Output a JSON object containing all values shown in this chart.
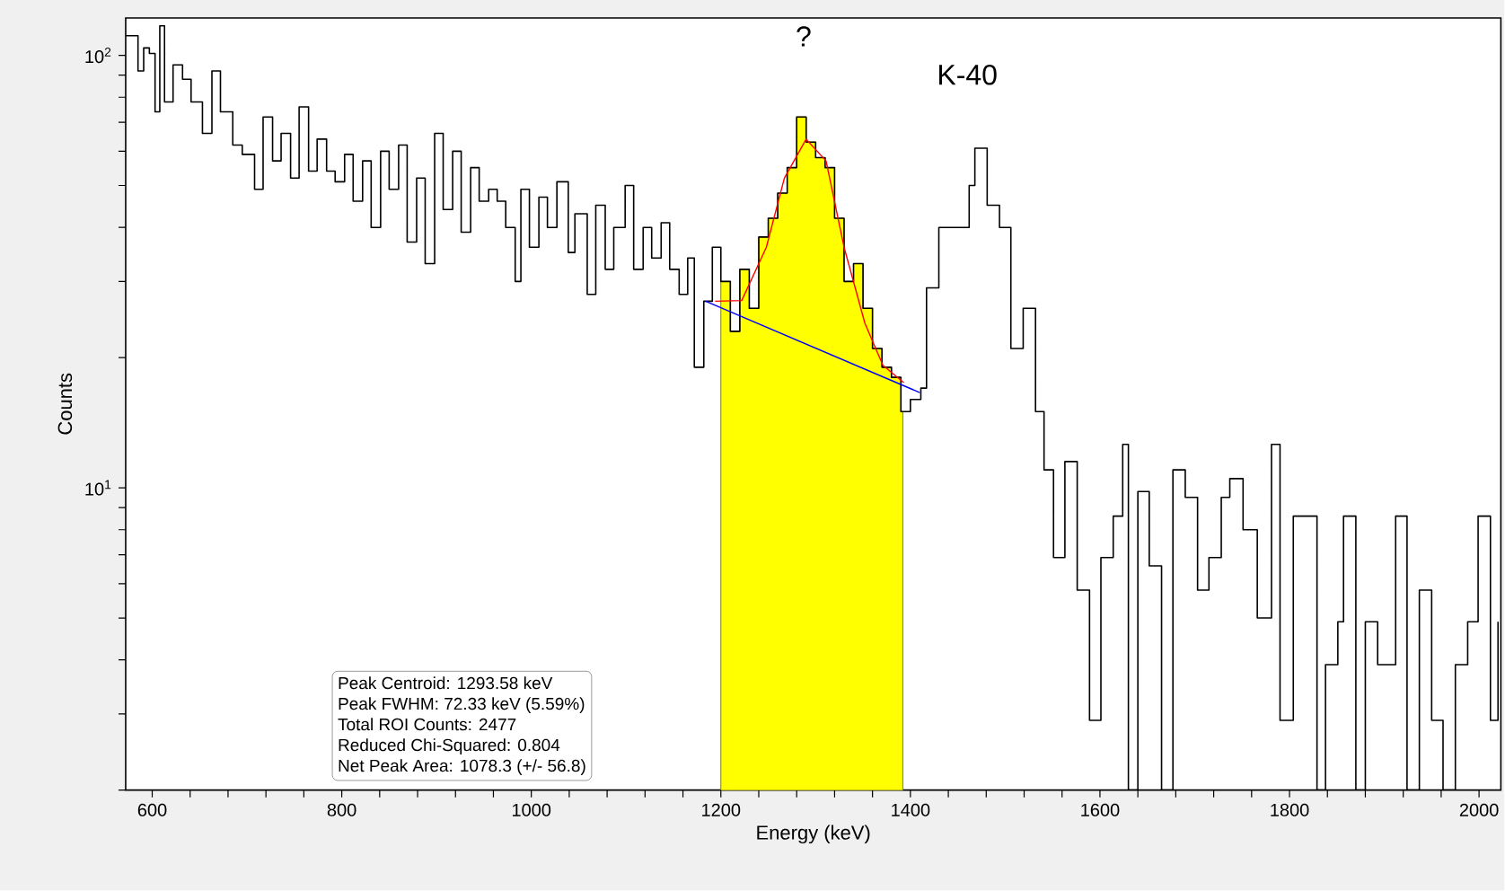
{
  "chart_data": {
    "type": "step",
    "xlabel": "Energy (keV)",
    "ylabel": "Counts",
    "log": true,
    "xlim": [
      572,
      2023
    ],
    "ylim": [
      2,
      122
    ],
    "xticks": [
      600,
      {
        "value": 640,
        "label": null
      },
      {
        "value": 680,
        "label": null
      },
      {
        "value": 720,
        "label": null
      },
      {
        "value": 760,
        "label": null
      },
      800,
      {
        "value": 840,
        "label": null
      },
      {
        "value": 880,
        "label": null
      },
      {
        "value": 920,
        "label": null
      },
      {
        "value": 960,
        "label": null
      },
      1000,
      {
        "value": 1040,
        "label": null
      },
      {
        "value": 1080,
        "label": null
      },
      {
        "value": 1120,
        "label": null
      },
      {
        "value": 1160,
        "label": null
      },
      1200,
      {
        "value": 1240,
        "label": null
      },
      {
        "value": 1280,
        "label": null
      },
      {
        "value": 1320,
        "label": null
      },
      {
        "value": 1360,
        "label": null
      },
      1400,
      {
        "value": 1440,
        "label": null
      },
      {
        "value": 1480,
        "label": null
      },
      {
        "value": 1520,
        "label": null
      },
      {
        "value": 1560,
        "label": null
      },
      1600,
      {
        "value": 1640,
        "label": null
      },
      {
        "value": 1680,
        "label": null
      },
      {
        "value": 1720,
        "label": null
      },
      {
        "value": 1760,
        "label": null
      },
      1800,
      {
        "value": 1840,
        "label": null
      },
      {
        "value": 1880,
        "label": null
      },
      {
        "value": 1920,
        "label": null
      },
      {
        "value": 1960,
        "label": null
      },
      2000
    ],
    "yticks": [
      {
        "value": 2,
        "label": null
      },
      {
        "value": 3,
        "label": null
      },
      {
        "value": 4,
        "label": null
      },
      {
        "value": 5,
        "label": null
      },
      {
        "value": 6,
        "label": null
      },
      {
        "value": 7,
        "label": null
      },
      {
        "value": 8,
        "label": null
      },
      {
        "value": 9,
        "label": null
      },
      {
        "value": 10,
        "label": "10$^{1}$"
      },
      {
        "value": 20,
        "label": null
      },
      {
        "value": 30,
        "label": null
      },
      {
        "value": 40,
        "label": null
      },
      {
        "value": 50,
        "label": null
      },
      {
        "value": 60,
        "label": null
      },
      {
        "value": 70,
        "label": null
      },
      {
        "value": 80,
        "label": null
      },
      {
        "value": 90,
        "label": null
      },
      {
        "value": 100,
        "label": "10$^{2}$"
      }
    ],
    "series": [
      {
        "type": "area",
        "color": "#ffff00",
        "x": [
          1200,
          1210,
          1220,
          1230,
          1240,
          1250,
          1260,
          1270,
          1280,
          1290,
          1300,
          1310,
          1320,
          1330,
          1340,
          1350,
          1360,
          1370,
          1380,
          1390,
          1392
        ],
        "values": [
          30,
          23,
          32,
          26,
          38,
          42,
          48,
          55,
          72,
          63,
          58,
          55,
          42,
          30,
          33,
          26,
          21,
          19,
          18,
          15,
          15
        ]
      },
      {
        "color": "#000000",
        "x": [
          572,
          585,
          591,
          597,
          603,
          608,
          613,
          622,
          632,
          641,
          653,
          663,
          672,
          685,
          695,
          708,
          717,
          727,
          736,
          746,
          755,
          765,
          774,
          784,
          793,
          803,
          812,
          822,
          831,
          841,
          850,
          860,
          869,
          879,
          888,
          898,
          907,
          917,
          926,
          936,
          945,
          955,
          964,
          973,
          983,
          989,
          998,
          1008,
          1017,
          1027,
          1039,
          1046,
          1059,
          1068,
          1078,
          1087,
          1099,
          1108,
          1118,
          1127,
          1137,
          1146,
          1156,
          1165,
          1172,
          1182,
          1191,
          1200,
          1210,
          1220,
          1230,
          1240,
          1250,
          1260,
          1270,
          1280,
          1290,
          1300,
          1310,
          1320,
          1330,
          1340,
          1350,
          1360,
          1370,
          1380,
          1390,
          1400,
          1411,
          1417,
          1430,
          1449,
          1462,
          1468,
          1481,
          1494,
          1506,
          1519,
          1532,
          1541,
          1551,
          1563,
          1576,
          1589,
          1601,
          1614,
          1624,
          1630,
          1640,
          1652,
          1665,
          1677,
          1690,
          1703,
          1715,
          1728,
          1737,
          1751,
          1766,
          1781,
          1790,
          1804,
          1817,
          1829,
          1838,
          1851,
          1857,
          1870,
          1880,
          1893,
          1905,
          1912,
          1924,
          1937,
          1950,
          1962,
          1975,
          1988,
          1999,
          2012,
          2020
        ],
        "values": [
          111,
          92,
          104,
          101,
          74,
          117,
          78,
          95,
          88,
          78,
          66,
          92,
          74,
          62,
          59,
          49,
          72,
          57,
          66,
          52,
          76,
          54,
          64,
          54,
          51,
          59,
          46,
          57,
          40,
          60,
          49,
          62,
          37,
          52,
          33,
          66,
          44,
          60,
          39,
          55,
          46,
          49,
          46,
          40,
          30,
          49,
          36,
          47,
          40,
          51,
          35,
          43,
          28,
          45,
          32,
          40,
          50,
          32,
          40,
          34,
          41,
          32,
          28,
          34,
          19,
          27,
          36,
          30,
          23,
          32,
          26,
          38,
          42,
          48,
          55,
          72,
          63,
          58,
          55,
          42,
          30,
          33,
          26,
          21,
          19,
          18,
          15,
          16,
          17,
          29,
          40,
          40,
          50,
          61,
          45,
          40,
          21,
          26,
          15,
          11,
          6.9,
          11.5,
          5.8,
          2.9,
          6.9,
          8.6,
          12.6,
          2,
          9.8,
          6.6,
          2,
          11,
          9.5,
          5.8,
          6.9,
          9.5,
          10.5,
          8,
          5,
          12.6,
          2.9,
          8.6,
          8.6,
          2,
          3.9,
          4.9,
          8.6,
          2,
          4.9,
          3.9,
          3.9,
          8.6,
          2,
          5.8,
          2.9,
          2,
          3.9,
          4.9,
          8.6,
          2.9,
          4.9
        ]
      },
      {
        "type": "line",
        "color": "#0000ff",
        "x": [
          1184,
          1410
        ],
        "values": [
          27,
          16.6
        ]
      },
      {
        "type": "line",
        "color": "#ff0000",
        "x": [
          1194,
          1222,
          1248,
          1267,
          1290,
          1311,
          1330,
          1352,
          1371,
          1393
        ],
        "values": [
          27,
          27.1,
          36,
          52,
          64,
          57,
          36,
          24,
          19.2,
          17.5
        ]
      }
    ],
    "annotations": [
      "?",
      "K-40",
      "Peak Centroid:  1293.58 keV",
      "Peak FWHM:   72.33 keV  (5.59%)",
      "Total ROI Counts: 2477",
      "Reduced Chi-Squared: 0.804",
      "Net Peak Area: 1078.3  (+/- 56.8)"
    ]
  }
}
